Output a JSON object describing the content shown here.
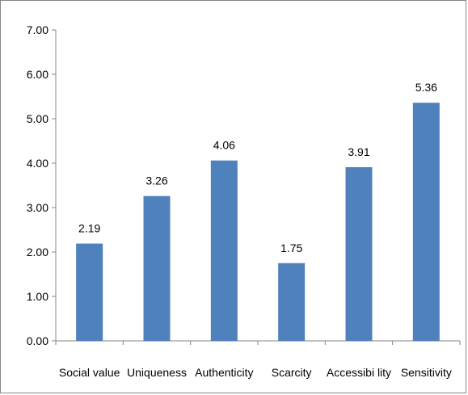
{
  "chart_data": {
    "type": "bar",
    "categories": [
      "Social value",
      "Uniqueness",
      "Authenticity",
      "Scarcity",
      "Accessibi lity",
      "Sensitivity"
    ],
    "values": [
      2.19,
      3.26,
      4.06,
      1.75,
      3.91,
      5.36
    ],
    "data_labels": [
      "2.19",
      "3.26",
      "4.06",
      "1.75",
      "3.91",
      "5.36"
    ],
    "y_ticks": [
      "0.00",
      "1.00",
      "2.00",
      "3.00",
      "4.00",
      "5.00",
      "6.00",
      "7.00"
    ],
    "ylim": [
      0,
      7
    ],
    "title": "",
    "xlabel": "",
    "ylabel": "",
    "grid": false,
    "legend": "none",
    "bar_color": "#4F81BD",
    "axis_color": "#868686"
  }
}
